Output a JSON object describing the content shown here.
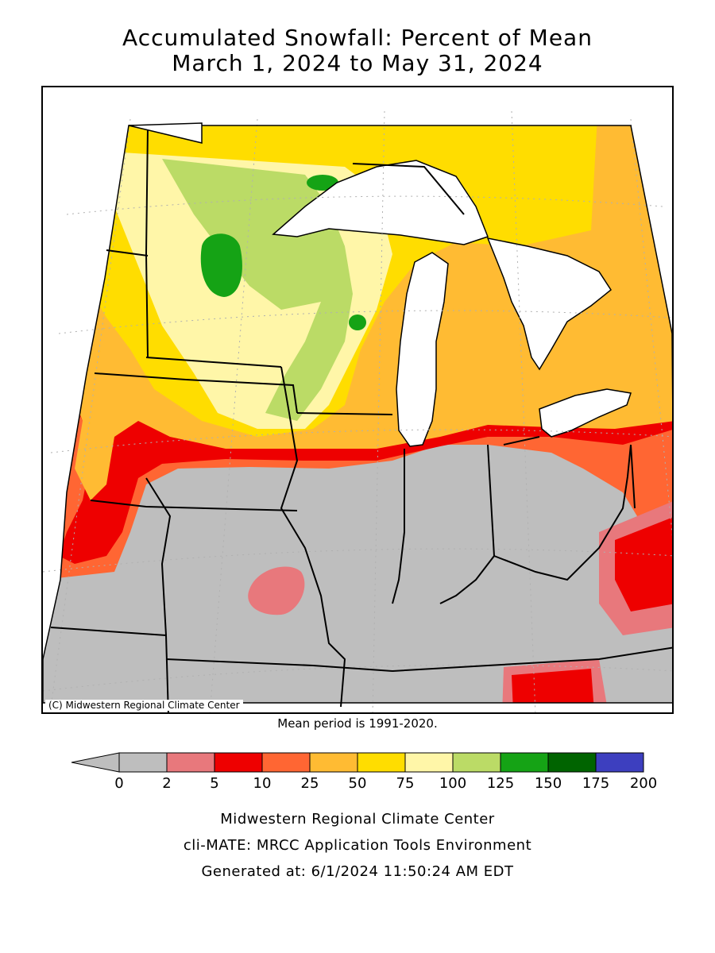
{
  "title": {
    "line1": "Accumulated Snowfall: Percent of Mean",
    "line2": "March 1, 2024 to May 31, 2024"
  },
  "map": {
    "copyright": "(C) Midwestern Regional Climate Center",
    "mean_note": "Mean period is 1991-2020.",
    "colors": {
      "lake": "#ffffff",
      "border": "#000000",
      "grid": "#b0b0b0"
    }
  },
  "legend": {
    "bins": [
      {
        "from": "0",
        "to": "2",
        "color": "#bebebe"
      },
      {
        "from": "2",
        "to": "5",
        "color": "#e8787c"
      },
      {
        "from": "5",
        "to": "10",
        "color": "#ee0000"
      },
      {
        "from": "10",
        "to": "25",
        "color": "#ff6633"
      },
      {
        "from": "25",
        "to": "50",
        "color": "#ffbb33"
      },
      {
        "from": "50",
        "to": "75",
        "color": "#ffdd00"
      },
      {
        "from": "75",
        "to": "100",
        "color": "#fff6a8"
      },
      {
        "from": "100",
        "to": "125",
        "color": "#bbdb66"
      },
      {
        "from": "125",
        "to": "150",
        "color": "#15a315"
      },
      {
        "from": "150",
        "to": "175",
        "color": "#006400"
      },
      {
        "from": "175",
        "to": "200",
        "color": "#3d3fbf"
      }
    ],
    "tick_labels": [
      "0",
      "2",
      "5",
      "10",
      "25",
      "50",
      "75",
      "100",
      "125",
      "150",
      "175",
      "200"
    ]
  },
  "footer": {
    "line1": "Midwestern Regional Climate Center",
    "line2": "cli-MATE: MRCC Application Tools Environment",
    "line3": "Generated at: 6/1/2024 11:50:24 AM EDT"
  }
}
